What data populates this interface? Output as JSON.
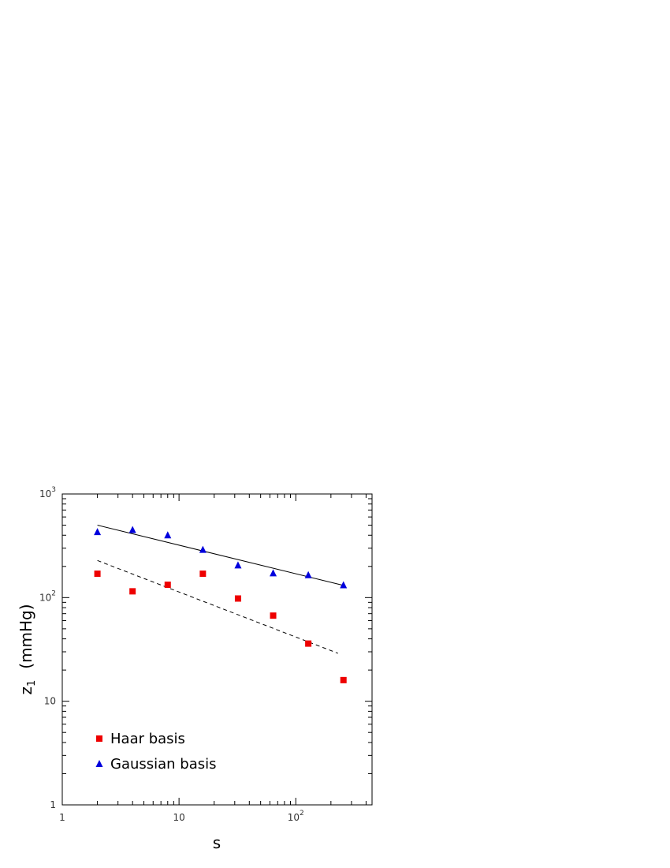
{
  "chart_data": {
    "type": "scatter",
    "xlabel": "s",
    "ylabel": "z",
    "ylabel_subscript": "1",
    "ylabel_unit": "(mmHg)",
    "xscale": "log",
    "yscale": "log",
    "xlim": [
      1,
      450
    ],
    "ylim": [
      1,
      1000
    ],
    "grid": false,
    "legend_position": "bottom-left",
    "x_ticks": [
      {
        "value": 1,
        "label": "1"
      },
      {
        "value": 10,
        "label": "10"
      },
      {
        "value": 100,
        "label": "10",
        "sup": "2"
      }
    ],
    "y_ticks": [
      {
        "value": 1,
        "label": "1"
      },
      {
        "value": 10,
        "label": "10"
      },
      {
        "value": 100,
        "label": "10",
        "sup": "2"
      },
      {
        "value": 1000,
        "label": "10",
        "sup": "3"
      }
    ],
    "series": [
      {
        "name": "Haar basis",
        "marker": "square",
        "color": "#ee0000",
        "x": [
          2,
          4,
          8,
          16,
          32,
          64,
          128,
          256
        ],
        "y": [
          170,
          115,
          133,
          170,
          98,
          67,
          36,
          16
        ]
      },
      {
        "name": "Gaussian basis",
        "marker": "triangle",
        "color": "#0000dd",
        "x": [
          2,
          4,
          8,
          16,
          32,
          64,
          128,
          256
        ],
        "y": [
          430,
          450,
          400,
          290,
          205,
          172,
          165,
          132
        ]
      }
    ],
    "fit_lines": [
      {
        "series": "Gaussian basis",
        "style": "solid",
        "color": "#000000",
        "x": [
          2,
          250
        ],
        "y": [
          500,
          132
        ]
      },
      {
        "series": "Haar basis",
        "style": "dashed",
        "color": "#000000",
        "x": [
          2,
          230
        ],
        "y": [
          228,
          29
        ]
      }
    ]
  }
}
